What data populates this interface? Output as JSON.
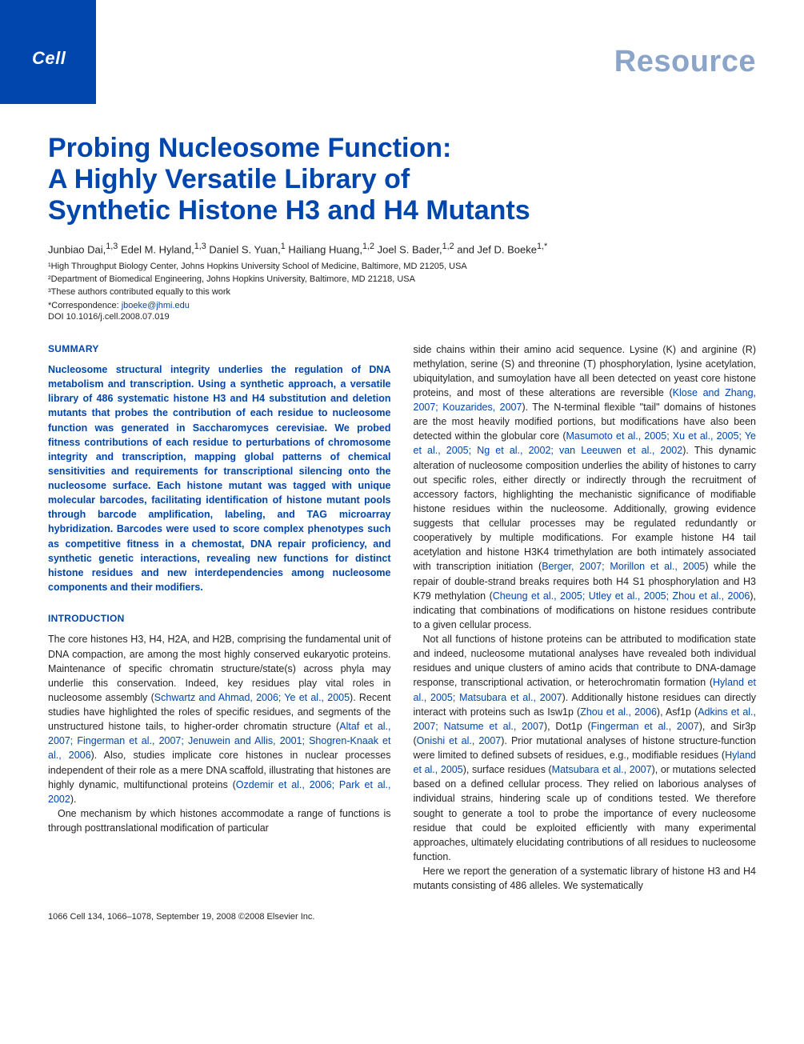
{
  "journal": "Cell",
  "article_type": "Resource",
  "title_lines": [
    "Probing Nucleosome Function:",
    "A Highly Versatile Library of",
    "Synthetic Histone H3 and H4 Mutants"
  ],
  "authors_html": "Junbiao Dai,<sup>1,3</sup> Edel M. Hyland,<sup>1,3</sup> Daniel S. Yuan,<sup>1</sup> Hailiang Huang,<sup>1,2</sup> Joel S. Bader,<sup>1,2</sup> and Jef D. Boeke<sup>1,*</sup>",
  "affiliations": [
    "¹High Throughput Biology Center, Johns Hopkins University School of Medicine, Baltimore, MD 21205, USA",
    "²Department of Biomedical Engineering, Johns Hopkins University, Baltimore, MD 21218, USA",
    "³These authors contributed equally to this work"
  ],
  "correspondence_label": "*Correspondence: ",
  "correspondence_email": "jboeke@jhmi.edu",
  "doi": "DOI 10.1016/j.cell.2008.07.019",
  "summary_head": "SUMMARY",
  "summary": "Nucleosome structural integrity underlies the regulation of DNA metabolism and transcription. Using a synthetic approach, a versatile library of 486 systematic histone H3 and H4 substitution and deletion mutants that probes the contribution of each residue to nucleosome function was generated in Saccharomyces cerevisiae. We probed fitness contributions of each residue to perturbations of chromosome integrity and transcription, mapping global patterns of chemical sensitivities and requirements for transcriptional silencing onto the nucleosome surface. Each histone mutant was tagged with unique molecular barcodes, facilitating identification of histone mutant pools through barcode amplification, labeling, and TAG microarray hybridization. Barcodes were used to score complex phenotypes such as competitive fitness in a chemostat, DNA repair proficiency, and synthetic genetic interactions, revealing new functions for distinct histone residues and new interdependencies among nucleosome components and their modifiers.",
  "intro_head": "INTRODUCTION",
  "intro_p1": "The core histones H3, H4, H2A, and H2B, comprising the fundamental unit of DNA compaction, are among the most highly conserved eukaryotic proteins. Maintenance of specific chromatin structure/state(s) across phyla may underlie this conservation. Indeed, key residues play vital roles in nucleosome assembly (<span class=\"cite\">Schwartz and Ahmad, 2006; Ye et al., 2005</span>). Recent studies have highlighted the roles of specific residues, and segments of the unstructured histone tails, to higher-order chromatin structure (<span class=\"cite\">Altaf et al., 2007; Fingerman et al., 2007; Jenuwein and Allis, 2001; Shogren-Knaak et al., 2006</span>). Also, studies implicate core histones in nuclear processes independent of their role as a mere DNA scaffold, illustrating that histones are highly dynamic, multifunctional proteins (<span class=\"cite\">Ozdemir et al., 2006; Park et al., 2002</span>).",
  "intro_p2": "One mechanism by which histones accommodate a range of functions is through posttranslational modification of particular",
  "col2_p1": "side chains within their amino acid sequence. Lysine (K) and arginine (R) methylation, serine (S) and threonine (T) phosphorylation, lysine acetylation, ubiquitylation, and sumoylation have all been detected on yeast core histone proteins, and most of these alterations are reversible (<span class=\"cite\">Klose and Zhang, 2007; Kouzarides, 2007</span>). The N-terminal flexible \"tail\" domains of histones are the most heavily modified portions, but modifications have also been detected within the globular core (<span class=\"cite\">Masumoto et al., 2005; Xu et al., 2005; Ye et al., 2005; Ng et al., 2002; van Leeuwen et al., 2002</span>). This dynamic alteration of nucleosome composition underlies the ability of histones to carry out specific roles, either directly or indirectly through the recruitment of accessory factors, highlighting the mechanistic significance of modifiable histone residues within the nucleosome. Additionally, growing evidence suggests that cellular processes may be regulated redundantly or cooperatively by multiple modifications. For example histone H4 tail acetylation and histone H3K4 trimethylation are both intimately associated with transcription initiation (<span class=\"cite\">Berger, 2007; Morillon et al., 2005</span>) while the repair of double-strand breaks requires both H4 S1 phosphorylation and H3 K79 methylation (<span class=\"cite\">Cheung et al., 2005; Utley et al., 2005; Zhou et al., 2006</span>), indicating that combinations of modifications on histone residues contribute to a given cellular process.",
  "col2_p2": "Not all functions of histone proteins can be attributed to modification state and indeed, nucleosome mutational analyses have revealed both individual residues and unique clusters of amino acids that contribute to DNA-damage response, transcriptional activation, or heterochromatin formation (<span class=\"cite\">Hyland et al., 2005; Matsubara et al., 2007</span>). Additionally histone residues can directly interact with proteins such as Isw1p (<span class=\"cite\">Zhou et al., 2006</span>), Asf1p (<span class=\"cite\">Adkins et al., 2007; Natsume et al., 2007</span>), Dot1p (<span class=\"cite\">Fingerman et al., 2007</span>), and Sir3p (<span class=\"cite\">Onishi et al., 2007</span>). Prior mutational analyses of histone structure-function were limited to defined subsets of residues, e.g., modifiable residues (<span class=\"cite\">Hyland et al., 2005</span>), surface residues (<span class=\"cite\">Matsubara et al., 2007</span>), or mutations selected based on a defined cellular process. They relied on laborious analyses of individual strains, hindering scale up of conditions tested. We therefore sought to generate a tool to probe the importance of every nucleosome residue that could be exploited efficiently with many experimental approaches, ultimately elucidating contributions of all residues to nucleosome function.",
  "col2_p3": "Here we report the generation of a systematic library of histone H3 and H4 mutants consisting of 486 alleles. We systematically",
  "footer": "1066  Cell 134, 1066–1078, September 19, 2008 ©2008 Elsevier Inc.",
  "colors": {
    "brand_blue": "#0046ad",
    "resource_gray": "#8ba4c9",
    "text": "#231f20",
    "background": "#ffffff"
  },
  "fontsizes": {
    "title": 34,
    "resource": 38,
    "journal": 22,
    "authors": 13,
    "affil": 11,
    "body": 12.5,
    "footer": 11
  }
}
